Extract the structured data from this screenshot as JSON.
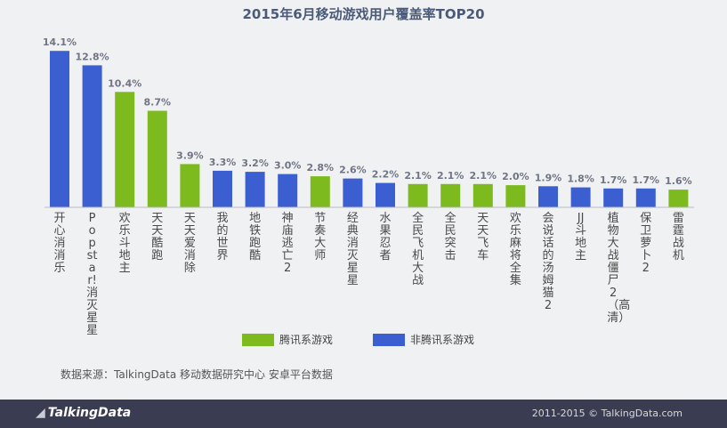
{
  "chart_data": {
    "type": "bar",
    "title": "2015年6月移动游戏用户覆盖率TOP20",
    "categories": [
      "开心消消乐",
      "Popstar!消灭星星",
      "欢乐斗地主",
      "天天酷跑",
      "天天爱消除",
      "我的世界",
      "地铁跑酷",
      "神庙逃亡2",
      "节奏大师",
      "经典消灭星星",
      "水果忍者",
      "全民飞机大战",
      "全民突击",
      "天天飞车",
      "欢乐麻将全集",
      "会说话的汤姆猫2",
      "JJ斗地主",
      "植物大战僵尸2（高清）",
      "保卫萝卜2",
      "雷霆战机"
    ],
    "values": [
      14.1,
      12.8,
      10.4,
      8.7,
      3.9,
      3.3,
      3.2,
      3.0,
      2.8,
      2.6,
      2.2,
      2.1,
      2.1,
      2.1,
      2.0,
      1.9,
      1.8,
      1.7,
      1.7,
      1.6
    ],
    "value_labels": [
      "14.1%",
      "12.8%",
      "10.4%",
      "8.7%",
      "3.9%",
      "3.3%",
      "3.2%",
      "3.0%",
      "2.8%",
      "2.6%",
      "2.2%",
      "2.1%",
      "2.1%",
      "2.1%",
      "2.0%",
      "1.9%",
      "1.8%",
      "1.7%",
      "1.7%",
      "1.6%"
    ],
    "groups": [
      "non-tencent",
      "non-tencent",
      "tencent",
      "tencent",
      "tencent",
      "non-tencent",
      "non-tencent",
      "non-tencent",
      "tencent",
      "non-tencent",
      "non-tencent",
      "tencent",
      "tencent",
      "tencent",
      "tencent",
      "non-tencent",
      "non-tencent",
      "non-tencent",
      "non-tencent",
      "tencent"
    ],
    "series": [
      {
        "key": "tencent",
        "name": "腾讯系游戏",
        "color": "#7dba1e"
      },
      {
        "key": "non-tencent",
        "name": "非腾讯系游戏",
        "color": "#3b5fd1"
      }
    ],
    "ylim": [
      0,
      15
    ],
    "grid": false,
    "legend_position": "bottom-center"
  },
  "source_note": "数据来源：TalkingData 移动数据研究中心 安卓平台数据",
  "footer": {
    "logo": "TalkingData",
    "copyright": "2011-2015 © TalkingData.com"
  }
}
